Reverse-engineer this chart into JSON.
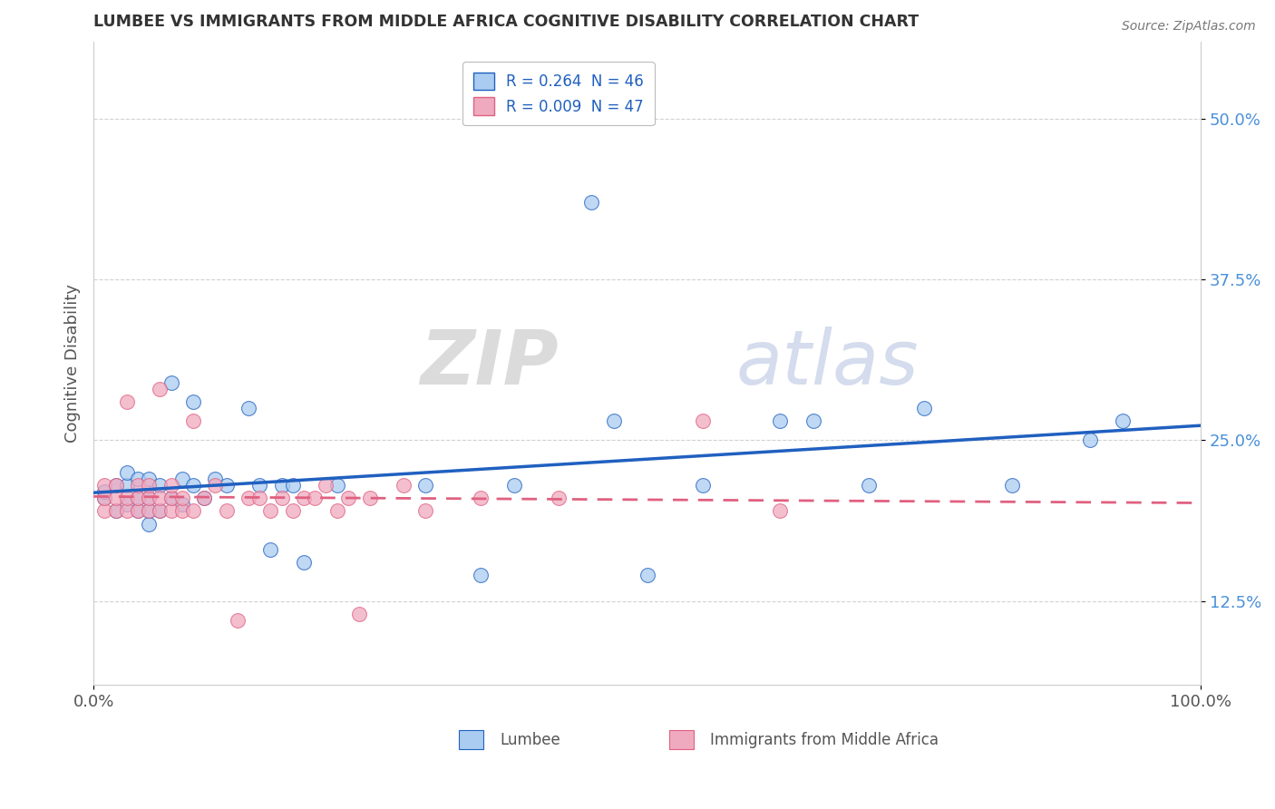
{
  "title": "LUMBEE VS IMMIGRANTS FROM MIDDLE AFRICA COGNITIVE DISABILITY CORRELATION CHART",
  "source": "Source: ZipAtlas.com",
  "xlabel_lumbee": "Lumbee",
  "xlabel_immigrants": "Immigrants from Middle Africa",
  "ylabel": "Cognitive Disability",
  "xlim": [
    0,
    1.0
  ],
  "ylim": [
    0.06,
    0.56
  ],
  "yticks": [
    0.125,
    0.25,
    0.375,
    0.5
  ],
  "ytick_labels": [
    "12.5%",
    "25.0%",
    "37.5%",
    "50.0%"
  ],
  "xticks": [
    0.0,
    1.0
  ],
  "xtick_labels": [
    "0.0%",
    "100.0%"
  ],
  "legend_R1": "R = 0.264  N = 46",
  "legend_R2": "R = 0.009  N = 47",
  "color_lumbee": "#aaccf0",
  "color_immigrants": "#f0aac0",
  "color_lumbee_line": "#2060c0",
  "color_immigrants_line": "#e06080",
  "watermark_zip": "ZIP",
  "watermark_atlas": "atlas",
  "lumbee_x": [
    0.01,
    0.01,
    0.02,
    0.02,
    0.03,
    0.03,
    0.03,
    0.04,
    0.04,
    0.04,
    0.05,
    0.05,
    0.05,
    0.05,
    0.06,
    0.06,
    0.07,
    0.07,
    0.08,
    0.08,
    0.09,
    0.09,
    0.1,
    0.11,
    0.12,
    0.14,
    0.15,
    0.16,
    0.17,
    0.18,
    0.19,
    0.22,
    0.3,
    0.35,
    0.38,
    0.45,
    0.47,
    0.5,
    0.55,
    0.62,
    0.65,
    0.7,
    0.75,
    0.83,
    0.9,
    0.93
  ],
  "lumbee_y": [
    0.205,
    0.21,
    0.195,
    0.215,
    0.2,
    0.215,
    0.225,
    0.195,
    0.205,
    0.22,
    0.185,
    0.195,
    0.205,
    0.22,
    0.195,
    0.215,
    0.205,
    0.295,
    0.2,
    0.22,
    0.215,
    0.28,
    0.205,
    0.22,
    0.215,
    0.275,
    0.215,
    0.165,
    0.215,
    0.215,
    0.155,
    0.215,
    0.215,
    0.145,
    0.215,
    0.435,
    0.265,
    0.145,
    0.215,
    0.265,
    0.265,
    0.215,
    0.275,
    0.215,
    0.25,
    0.265
  ],
  "immigrants_x": [
    0.01,
    0.01,
    0.01,
    0.02,
    0.02,
    0.02,
    0.03,
    0.03,
    0.03,
    0.04,
    0.04,
    0.04,
    0.05,
    0.05,
    0.05,
    0.06,
    0.06,
    0.06,
    0.07,
    0.07,
    0.07,
    0.08,
    0.08,
    0.09,
    0.09,
    0.1,
    0.11,
    0.12,
    0.13,
    0.14,
    0.15,
    0.16,
    0.17,
    0.18,
    0.19,
    0.2,
    0.21,
    0.22,
    0.23,
    0.24,
    0.25,
    0.28,
    0.3,
    0.35,
    0.42,
    0.55,
    0.62
  ],
  "immigrants_y": [
    0.195,
    0.205,
    0.215,
    0.195,
    0.205,
    0.215,
    0.195,
    0.205,
    0.28,
    0.195,
    0.205,
    0.215,
    0.195,
    0.205,
    0.215,
    0.195,
    0.205,
    0.29,
    0.195,
    0.205,
    0.215,
    0.195,
    0.205,
    0.195,
    0.265,
    0.205,
    0.215,
    0.195,
    0.11,
    0.205,
    0.205,
    0.195,
    0.205,
    0.195,
    0.205,
    0.205,
    0.215,
    0.195,
    0.205,
    0.115,
    0.205,
    0.215,
    0.195,
    0.205,
    0.205,
    0.265,
    0.195
  ]
}
